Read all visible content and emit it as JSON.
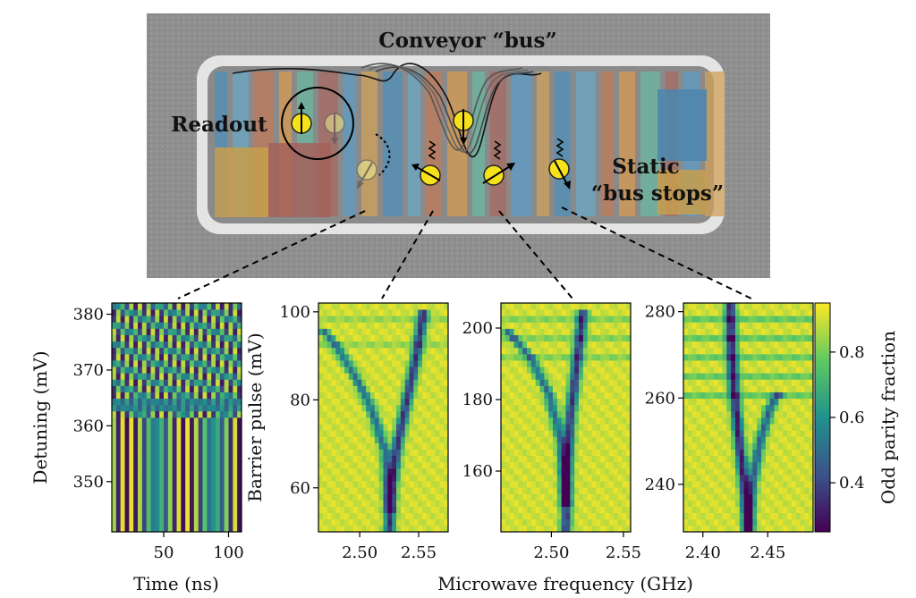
{
  "figure": {
    "device": {
      "labels": {
        "conveyor": "Conveyor “bus”",
        "readout": "Readout",
        "static_line1": "Static",
        "static_line2": "“bus stops”"
      }
    },
    "colorbar": {
      "label": "Odd parity fraction",
      "colormap": "viridis",
      "min": 0.25,
      "max": 0.95,
      "ticks": [
        "0.4",
        "0.6",
        "0.8"
      ],
      "tick_values": [
        0.4,
        0.6,
        0.8
      ]
    }
  },
  "chart_data": [
    {
      "type": "heatmap",
      "panel": "a",
      "xlabel": "Time (ns)",
      "ylabel": "Detuning (mV)",
      "xlim": [
        10,
        110
      ],
      "ylim": [
        341,
        382
      ],
      "xticks": [
        "50",
        "100"
      ],
      "xtick_values": [
        50,
        100
      ],
      "yticks": [
        "350",
        "360",
        "370",
        "380"
      ],
      "ytick_values": [
        350,
        360,
        370,
        380
      ],
      "pattern": "time oscillations, period ~6 ns below 362 mV; slanted and shifted above"
    },
    {
      "type": "heatmap",
      "panel": "b",
      "xlabel": "",
      "ylabel": "Barrier pulse (mV)",
      "xlim": [
        2.465,
        2.575
      ],
      "ylim": [
        50,
        102
      ],
      "xticks": [
        "2.50",
        "2.55"
      ],
      "xtick_values": [
        2.5,
        2.55
      ],
      "yticks": [
        "60",
        "80",
        "100"
      ],
      "ytick_values": [
        60,
        80,
        100
      ],
      "resonance_branches": [
        {
          "x": [
            2.525,
            2.527,
            2.532,
            2.54,
            2.548,
            2.554
          ],
          "y": [
            50,
            60,
            70,
            80,
            90,
            100
          ]
        },
        {
          "x": [
            2.525,
            2.522,
            2.51,
            2.495,
            2.478,
            2.468
          ],
          "y": [
            55,
            68,
            78,
            86,
            93,
            96
          ]
        }
      ]
    },
    {
      "type": "heatmap",
      "panel": "c",
      "xlabel": "Microwave frequency (GHz)",
      "ylabel": "",
      "xlim": [
        2.465,
        2.555
      ],
      "ylim": [
        143,
        207
      ],
      "xticks": [
        "2.50",
        "2.55"
      ],
      "xtick_values": [
        2.5,
        2.55
      ],
      "yticks": [
        "160",
        "180",
        "200"
      ],
      "ytick_values": [
        160,
        180,
        200
      ],
      "resonance_branches": [
        {
          "x": [
            2.51,
            2.511,
            2.513,
            2.517,
            2.52,
            2.522
          ],
          "y": [
            143,
            160,
            175,
            188,
            198,
            206
          ]
        },
        {
          "x": [
            2.51,
            2.507,
            2.498,
            2.485,
            2.472,
            2.468
          ],
          "y": [
            150,
            168,
            182,
            192,
            198,
            200
          ]
        }
      ]
    },
    {
      "type": "heatmap",
      "panel": "d",
      "xlabel": "",
      "ylabel": "",
      "xlim": [
        2.385,
        2.485
      ],
      "ylim": [
        229,
        282
      ],
      "xticks": [
        "2.40",
        "2.45"
      ],
      "xtick_values": [
        2.4,
        2.45
      ],
      "yticks": [
        "240",
        "260",
        "280"
      ],
      "ytick_values": [
        240,
        260,
        280
      ],
      "resonance_branches": [
        {
          "x": [
            2.435,
            2.432,
            2.428,
            2.424,
            2.422,
            2.421
          ],
          "y": [
            229,
            240,
            250,
            262,
            272,
            282
          ]
        },
        {
          "x": [
            2.435,
            2.438,
            2.444,
            2.452,
            2.46
          ],
          "y": [
            229,
            240,
            250,
            258,
            262
          ]
        }
      ]
    }
  ]
}
